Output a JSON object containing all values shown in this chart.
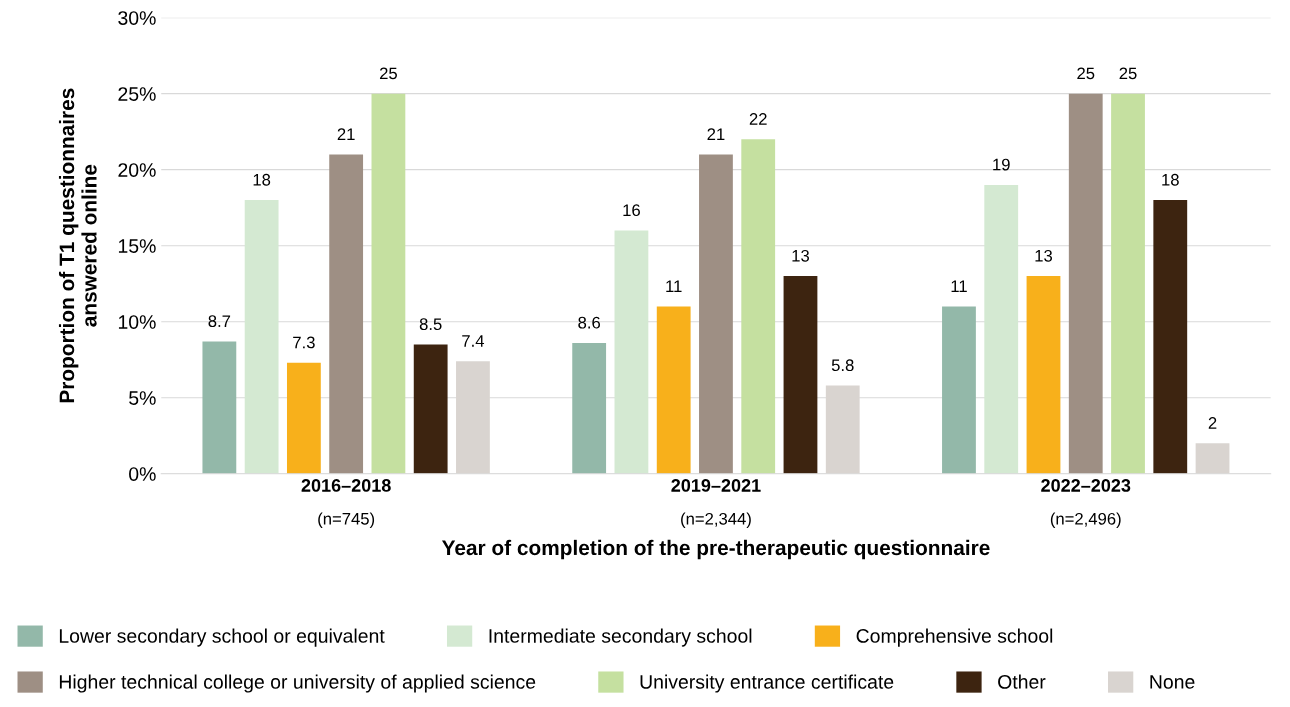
{
  "chart_data": {
    "type": "bar",
    "xlabel": "Year of completion of the pre-therapeutic questionnaire",
    "ylabel": "Proportion of T1 questionnaires\nanswered online",
    "categories": [
      "2016–2018\n(n=745)",
      "2019–2021\n(n=2,344)",
      "2022–2023\n(n=2,496)"
    ],
    "series": [
      {
        "name": "Lower secondary school or equivalent",
        "color": "#93b8a9",
        "values": [
          8.7,
          8.6,
          11
        ]
      },
      {
        "name": "Intermediate secondary school",
        "color": "#d4e9d2",
        "values": [
          18,
          16,
          19
        ]
      },
      {
        "name": "Comprehensive school",
        "color": "#f8b01b",
        "values": [
          7.3,
          11,
          13
        ]
      },
      {
        "name": "Higher technical college or university of applied science",
        "color": "#9e8f84",
        "values": [
          21,
          21,
          25
        ]
      },
      {
        "name": "University entrance certificate",
        "color": "#c5e0a0",
        "values": [
          25,
          22,
          25
        ]
      },
      {
        "name": "Other",
        "color": "#3d2410",
        "values": [
          8.5,
          13,
          18
        ]
      },
      {
        "name": "None",
        "color": "#d9d4d0",
        "values": [
          7.4,
          5.8,
          2
        ]
      }
    ],
    "ylim": [
      0,
      30
    ],
    "yticks": [
      {
        "value": 0,
        "label": "0%"
      },
      {
        "value": 5,
        "label": "5%"
      },
      {
        "value": 10,
        "label": "10%"
      },
      {
        "value": 15,
        "label": "15%"
      },
      {
        "value": 20,
        "label": "20%"
      },
      {
        "value": 25,
        "label": "25%"
      },
      {
        "value": 30,
        "label": "30%"
      }
    ],
    "grid": "y",
    "legend": "bottom",
    "data_labels": true
  }
}
